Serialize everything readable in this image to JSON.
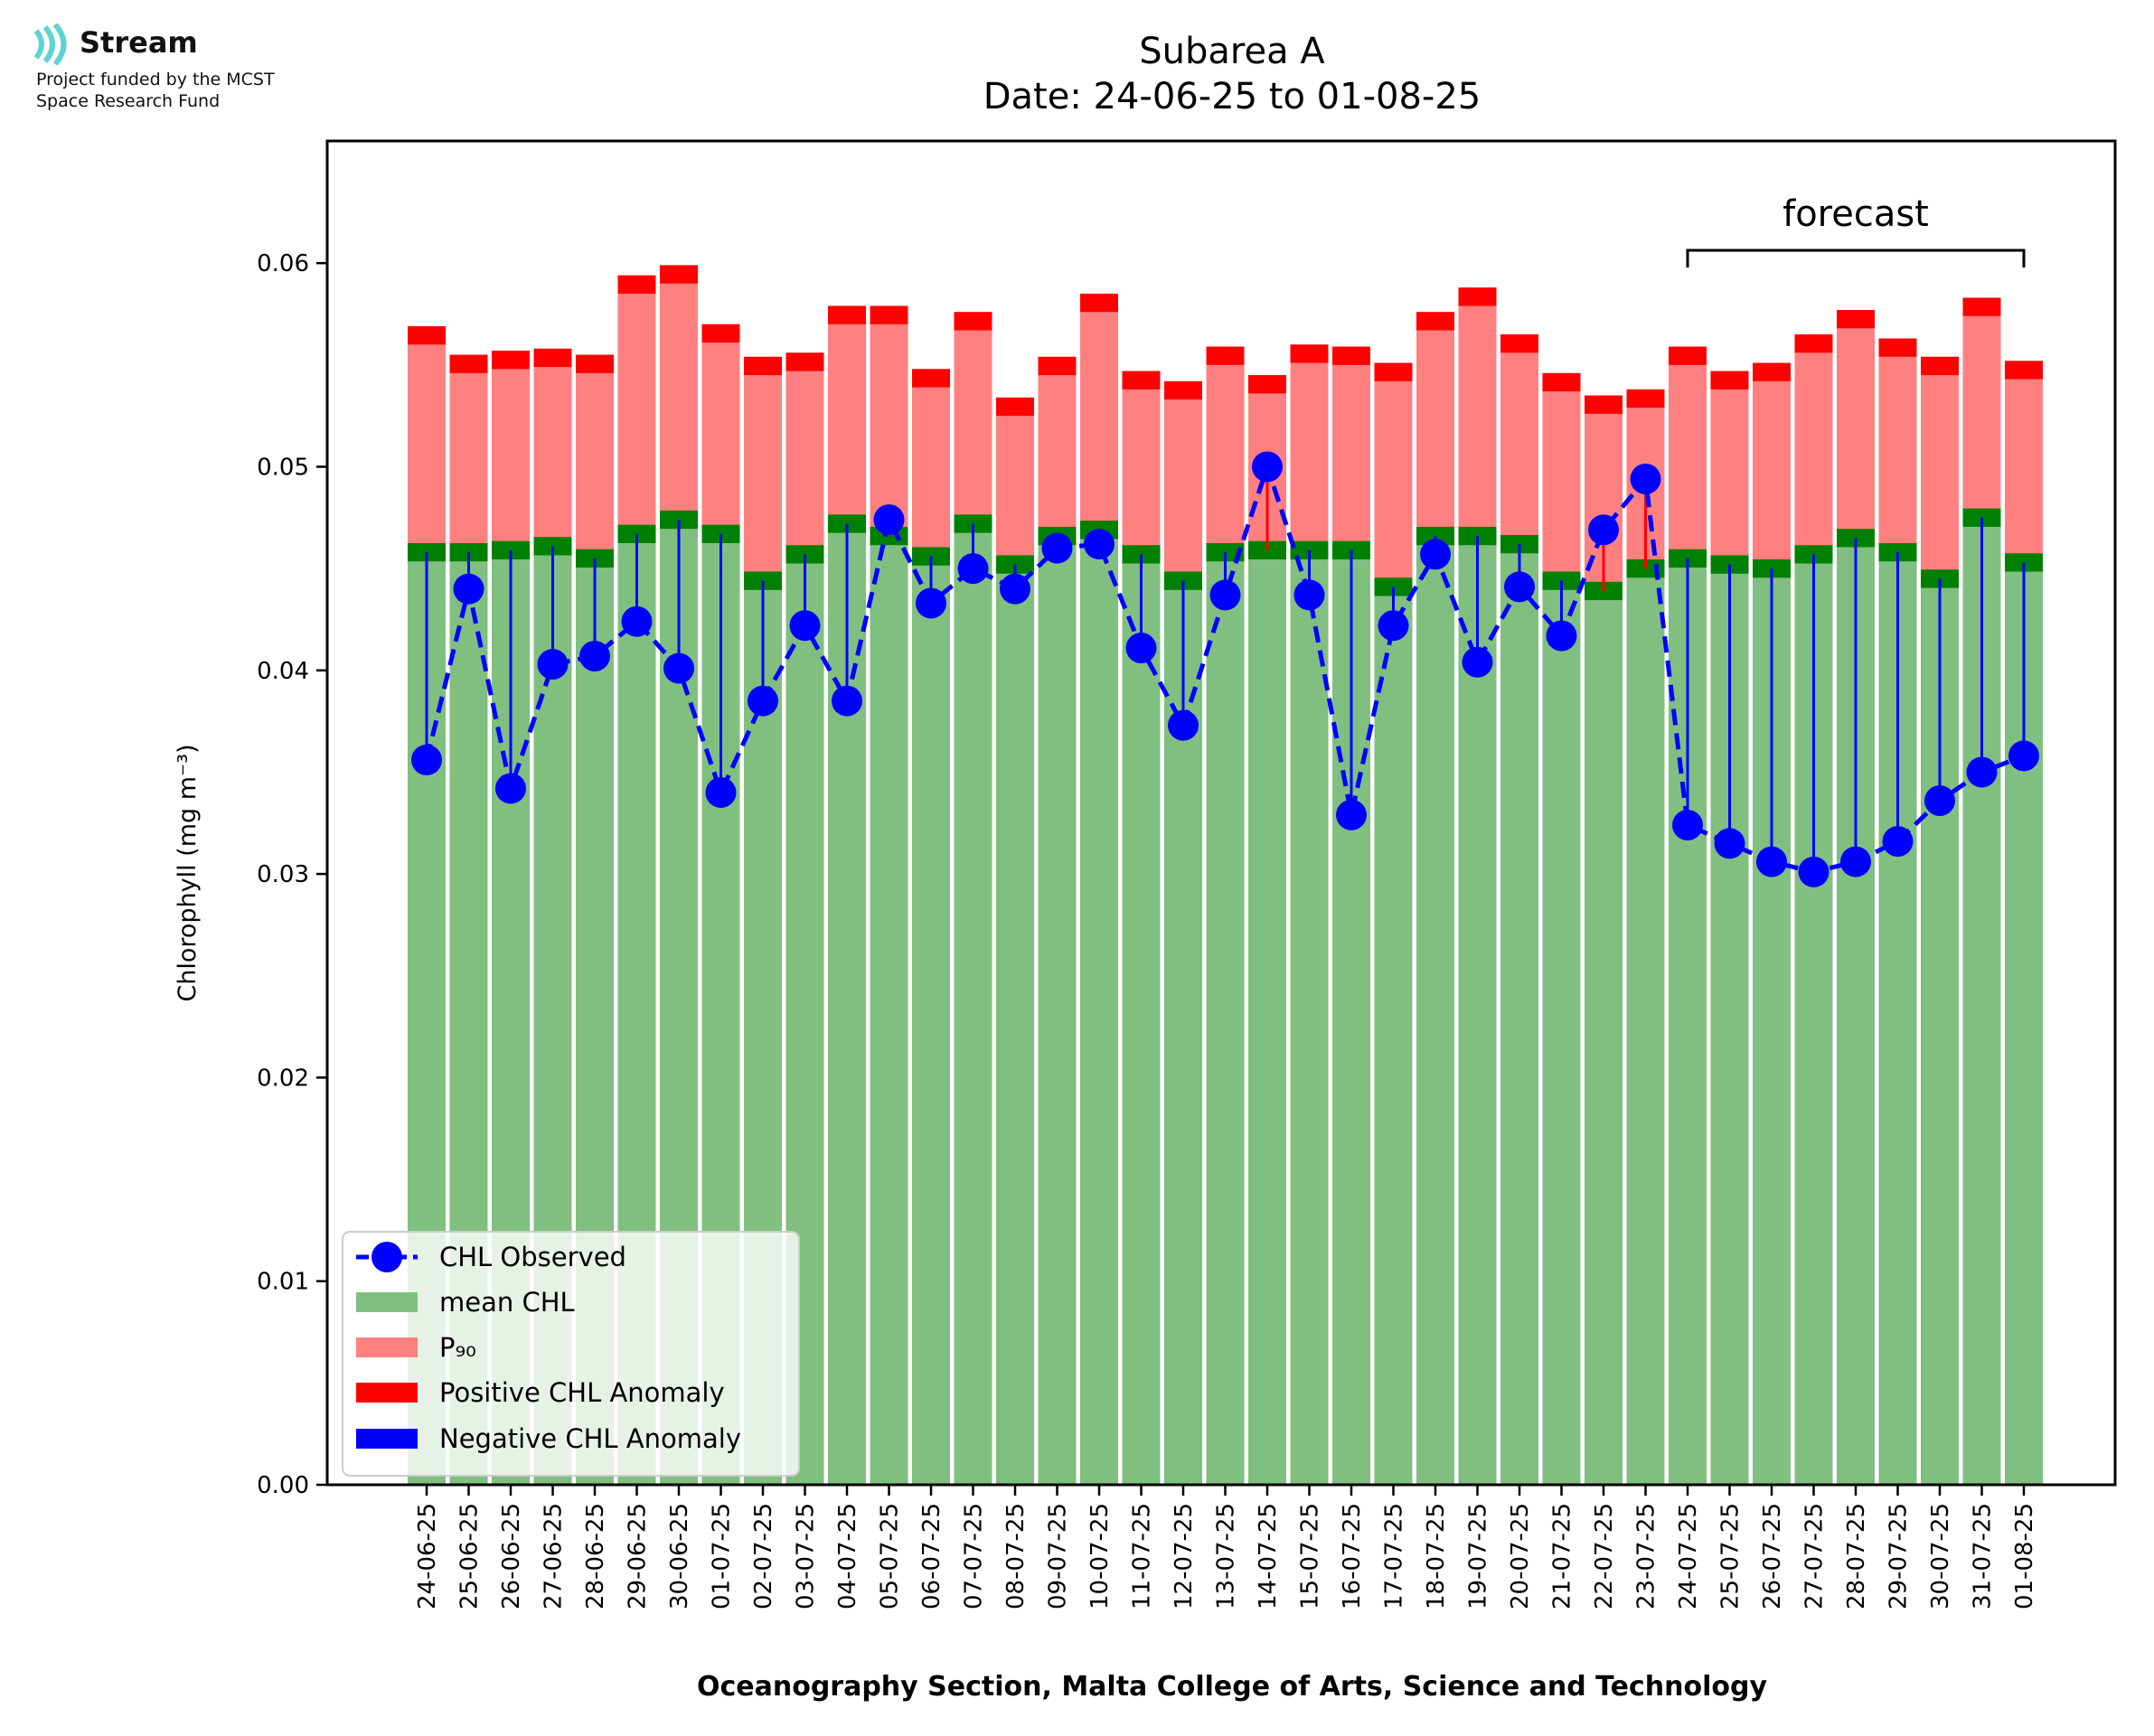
{
  "logo": {
    "name": "Stream",
    "tagline_1": "Project funded by the MCST",
    "tagline_2": "Space Research Fund",
    "colors": {
      "accent": "#5fd3d1"
    }
  },
  "chart_data": {
    "type": "bar",
    "title": "Subarea A",
    "subtitle": "Date: 24-06-25 to 01-08-25",
    "ylabel": "Chlorophyll (mg m⁻³)",
    "xlabel": "Oceanography Section, Malta College of Arts, Science and Technology",
    "ylim": [
      0,
      0.066
    ],
    "yticks": [
      0.0,
      0.01,
      0.02,
      0.03,
      0.04,
      0.05,
      0.06
    ],
    "ytick_labels": [
      "0.00",
      "0.01",
      "0.02",
      "0.03",
      "0.04",
      "0.05",
      "0.06"
    ],
    "grid": false,
    "legend_position": "lower-left",
    "categories": [
      "24-06-25",
      "25-06-25",
      "26-06-25",
      "27-06-25",
      "28-06-25",
      "29-06-25",
      "30-06-25",
      "01-07-25",
      "02-07-25",
      "03-07-25",
      "04-07-25",
      "05-07-25",
      "06-07-25",
      "07-07-25",
      "08-07-25",
      "09-07-25",
      "10-07-25",
      "11-07-25",
      "12-07-25",
      "13-07-25",
      "14-07-25",
      "15-07-25",
      "16-07-25",
      "17-07-25",
      "18-07-25",
      "19-07-25",
      "20-07-25",
      "21-07-25",
      "22-07-25",
      "23-07-25",
      "24-07-25",
      "25-07-25",
      "26-07-25",
      "27-07-25",
      "28-07-25",
      "29-07-25",
      "30-07-25",
      "31-07-25",
      "01-08-25"
    ],
    "series": [
      {
        "name": "mean CHL",
        "values": [
          0.0458,
          0.0458,
          0.0459,
          0.0461,
          0.0455,
          0.0467,
          0.0474,
          0.0467,
          0.0444,
          0.0457,
          0.0472,
          0.0466,
          0.0456,
          0.0472,
          0.0452,
          0.0466,
          0.0469,
          0.0457,
          0.0444,
          0.0458,
          0.0459,
          0.0459,
          0.0459,
          0.0441,
          0.0466,
          0.0466,
          0.0462,
          0.0444,
          0.0439,
          0.045,
          0.0455,
          0.0452,
          0.045,
          0.0457,
          0.0465,
          0.0458,
          0.0445,
          0.0475,
          0.0453
        ]
      },
      {
        "name": "P₉₀",
        "values": [
          0.0569,
          0.0555,
          0.0557,
          0.0558,
          0.0555,
          0.0594,
          0.0599,
          0.057,
          0.0554,
          0.0556,
          0.0579,
          0.0579,
          0.0548,
          0.0576,
          0.0534,
          0.0554,
          0.0585,
          0.0547,
          0.0542,
          0.0559,
          0.0545,
          0.056,
          0.0559,
          0.0551,
          0.0576,
          0.0588,
          0.0565,
          0.0546,
          0.0535,
          0.0538,
          0.0559,
          0.0547,
          0.0551,
          0.0565,
          0.0577,
          0.0563,
          0.0554,
          0.0583,
          0.0552
        ]
      },
      {
        "name": "CHL Observed",
        "values": [
          0.0356,
          0.044,
          0.0342,
          0.0403,
          0.0407,
          0.0424,
          0.0401,
          0.034,
          0.0385,
          0.0422,
          0.0385,
          0.0474,
          0.0433,
          0.045,
          0.044,
          0.046,
          0.0462,
          0.0411,
          0.0373,
          0.0437,
          0.05,
          0.0437,
          0.0329,
          0.0422,
          0.0457,
          0.0404,
          0.0441,
          0.0417,
          0.0469,
          0.0494,
          0.0324,
          0.0315,
          0.0306,
          0.0301,
          0.0306,
          0.0316,
          0.0336,
          0.035,
          0.0358
        ]
      }
    ],
    "legend": [
      "CHL Observed",
      "mean CHL",
      "P₉₀",
      "Positive CHL Anomaly",
      "Negative CHL Anomaly"
    ],
    "annotations": [
      {
        "text": "forecast",
        "from": "24-07-25",
        "to": "01-08-25"
      }
    ],
    "colors": {
      "mean": "#80bf80",
      "mean_band": "#008000",
      "p90": "#ff8080",
      "p90_band": "#ff0000",
      "observed": "#0000ff",
      "positive_anomaly": "#ff0000",
      "negative_anomaly": "#0000ff"
    }
  }
}
